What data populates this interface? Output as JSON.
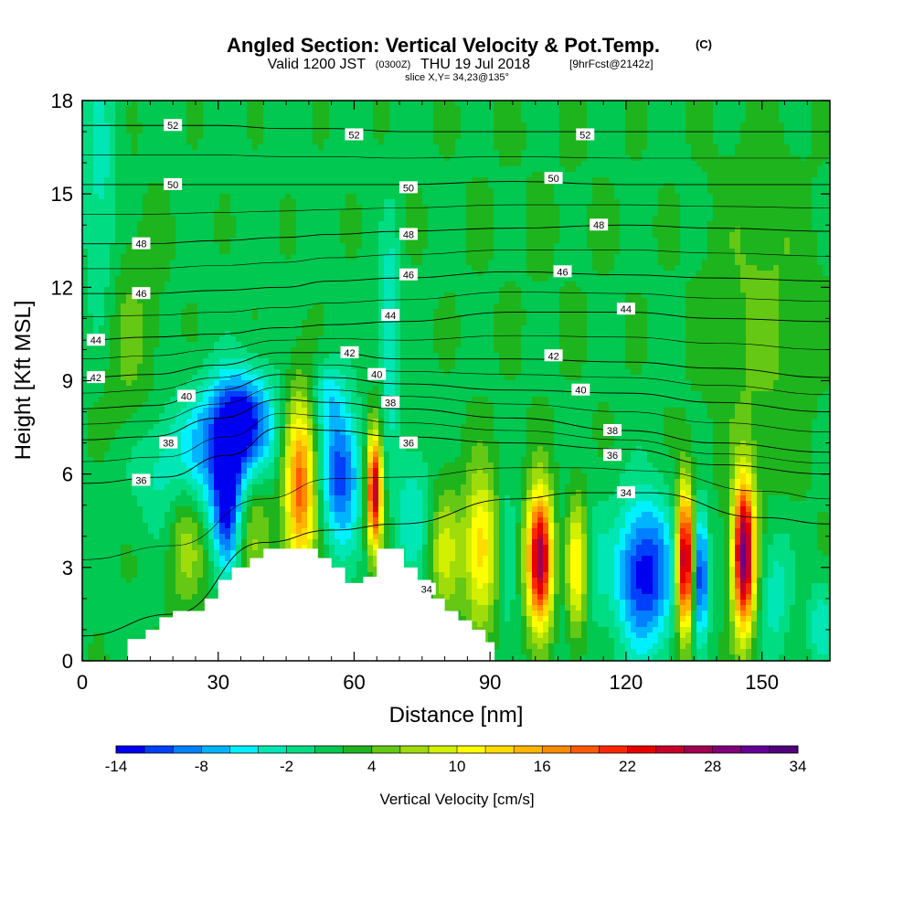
{
  "header": {
    "title": "Angled Section: Vertical Velocity & Pot.Temp.",
    "title_tag": "(C)",
    "valid_prefix": "Valid 1200 JST",
    "valid_utc": "(0300Z)",
    "valid_date": "THU 19 Jul 2018",
    "forecast_tag": "[9hrFcst@2142z]",
    "slice_info": "slice X,Y= 34,23@135°"
  },
  "chart_data": {
    "type": "heatmap",
    "xlabel": "Distance [nm]",
    "ylabel": "Height [Kft MSL]",
    "xlim": [
      0,
      165
    ],
    "ylim": [
      0,
      18
    ],
    "x_ticks": [
      "0",
      "30",
      "60",
      "90",
      "120",
      "150"
    ],
    "y_ticks": [
      "0",
      "3",
      "6",
      "9",
      "12",
      "15",
      "18"
    ],
    "colorbar": {
      "label": "Vertical Velocity [cm/s]",
      "min": -14,
      "max": 34,
      "step": 2,
      "tick_labels": [
        "-14",
        "-8",
        "-2",
        "4",
        "10",
        "16",
        "22",
        "28",
        "34"
      ],
      "colors": [
        "#0000f0",
        "#0040f8",
        "#0080ff",
        "#00b4ff",
        "#00f0ff",
        "#00e6b4",
        "#00dc82",
        "#00c850",
        "#1eb41e",
        "#64c814",
        "#a0dc0a",
        "#d2f000",
        "#ffff00",
        "#ffdc00",
        "#ffb400",
        "#ff8c00",
        "#ff5a00",
        "#ff2800",
        "#e60000",
        "#c80028",
        "#a00050",
        "#820078",
        "#640096",
        "#50007a"
      ]
    },
    "background_value": 1.5,
    "velocity_features": [
      {
        "x": 4,
        "z": 14,
        "sx": 3,
        "sz": 4,
        "value": -5
      },
      {
        "x": 35,
        "z": 7.6,
        "sx": 5,
        "sz": 1.2,
        "value": -16
      },
      {
        "x": 26,
        "z": 6.2,
        "sx": 10,
        "sz": 1.5,
        "value": -8
      },
      {
        "x": 32,
        "z": 4.8,
        "sx": 2,
        "sz": 1.4,
        "value": -12
      },
      {
        "x": 23,
        "z": 4.2,
        "sx": 3,
        "sz": 1.6,
        "value": 7
      },
      {
        "x": 38,
        "z": 5.0,
        "sx": 3,
        "sz": 2,
        "value": 6
      },
      {
        "x": 48,
        "z": 5.6,
        "sx": 2.5,
        "sz": 2.0,
        "value": 18
      },
      {
        "x": 57,
        "z": 6.0,
        "sx": 3,
        "sz": 1.6,
        "value": -13
      },
      {
        "x": 54,
        "z": 8.6,
        "sx": 2.5,
        "sz": 0.8,
        "value": -5
      },
      {
        "x": 64.5,
        "z": 5.5,
        "sx": 1.2,
        "sz": 1.3,
        "value": 25
      },
      {
        "x": 68,
        "z": 10.5,
        "sx": 1.5,
        "sz": 2.5,
        "value": -6
      },
      {
        "x": 73,
        "z": 4.8,
        "sx": 3,
        "sz": 1.6,
        "value": -5
      },
      {
        "x": 80,
        "z": 3.5,
        "sx": 2.5,
        "sz": 1.5,
        "value": 7
      },
      {
        "x": 88,
        "z": 3.6,
        "sx": 2.5,
        "sz": 1.7,
        "value": 12
      },
      {
        "x": 94,
        "z": 3.5,
        "sx": 1.5,
        "sz": 1.6,
        "value": -4
      },
      {
        "x": 101,
        "z": 3.3,
        "sx": 2.0,
        "sz": 1.5,
        "value": 27
      },
      {
        "x": 106,
        "z": 3.2,
        "sx": 1.5,
        "sz": 1.7,
        "value": -3
      },
      {
        "x": 109,
        "z": 3.0,
        "sx": 1.8,
        "sz": 1.5,
        "value": 11
      },
      {
        "x": 113,
        "z": 3.0,
        "sx": 1.8,
        "sz": 1.6,
        "value": -3
      },
      {
        "x": 124,
        "z": 2.8,
        "sx": 4.5,
        "sz": 1.7,
        "value": -15
      },
      {
        "x": 133,
        "z": 3.2,
        "sx": 1.3,
        "sz": 1.6,
        "value": 27
      },
      {
        "x": 136.5,
        "z": 2.8,
        "sx": 1.2,
        "sz": 1.4,
        "value": -14
      },
      {
        "x": 146,
        "z": 3.4,
        "sx": 1.7,
        "sz": 1.7,
        "value": 29
      },
      {
        "x": 153,
        "z": 2.2,
        "sx": 2.5,
        "sz": 1.5,
        "value": -5
      },
      {
        "x": 163,
        "z": 1.2,
        "sx": 2.0,
        "sz": 1.0,
        "value": -5
      },
      {
        "x": 102,
        "z": 14,
        "sx": 18,
        "sz": 5,
        "value": 0.5
      },
      {
        "x": 150,
        "z": 11,
        "sx": 8,
        "sz": 4,
        "value": 3
      },
      {
        "x": 40,
        "z": 15,
        "sx": 10,
        "sz": 4,
        "value": 0
      },
      {
        "x": 8,
        "z": 10,
        "sx": 6,
        "sz": 3,
        "value": 3.5
      }
    ],
    "terrain_profile": [
      [
        0,
        0
      ],
      [
        10,
        0
      ],
      [
        10,
        0.7
      ],
      [
        14,
        0.7
      ],
      [
        14,
        1.0
      ],
      [
        17,
        1.0
      ],
      [
        17,
        1.4
      ],
      [
        20,
        1.4
      ],
      [
        20,
        1.6
      ],
      [
        27,
        1.6
      ],
      [
        27,
        2.0
      ],
      [
        30,
        2.0
      ],
      [
        30,
        2.6
      ],
      [
        33,
        2.6
      ],
      [
        33,
        3.0
      ],
      [
        37,
        3.0
      ],
      [
        37,
        3.3
      ],
      [
        40,
        3.3
      ],
      [
        40,
        3.6
      ],
      [
        52,
        3.6
      ],
      [
        52,
        3.3
      ],
      [
        55,
        3.3
      ],
      [
        55,
        3.0
      ],
      [
        58,
        3.0
      ],
      [
        58,
        2.5
      ],
      [
        62,
        2.5
      ],
      [
        62,
        2.7
      ],
      [
        65,
        2.7
      ],
      [
        65,
        3.6
      ],
      [
        71,
        3.6
      ],
      [
        71,
        3.0
      ],
      [
        74,
        3.0
      ],
      [
        74,
        2.6
      ],
      [
        77,
        2.6
      ],
      [
        77,
        2.0
      ],
      [
        80,
        2.0
      ],
      [
        80,
        1.6
      ],
      [
        83,
        1.6
      ],
      [
        83,
        1.3
      ],
      [
        86,
        1.3
      ],
      [
        86,
        1.0
      ],
      [
        89,
        1.0
      ],
      [
        89,
        0.6
      ],
      [
        91,
        0.6
      ],
      [
        91,
        0
      ],
      [
        165,
        0
      ]
    ],
    "theta_contours": [
      {
        "level": "34",
        "points": [
          [
            0,
            0.8
          ],
          [
            20,
            1.5
          ],
          [
            40,
            3.8
          ],
          [
            55,
            4.2
          ],
          [
            70,
            4.4
          ],
          [
            95,
            5.2
          ],
          [
            110,
            5.4
          ],
          [
            125,
            5.4
          ],
          [
            150,
            4.6
          ],
          [
            165,
            4.4
          ]
        ]
      },
      {
        "level": "36",
        "points": [
          [
            0,
            5.7
          ],
          [
            18,
            5.9
          ],
          [
            32,
            6.6
          ],
          [
            44,
            7.5
          ],
          [
            55,
            7.4
          ],
          [
            70,
            7.2
          ],
          [
            95,
            7.0
          ],
          [
            120,
            6.8
          ],
          [
            140,
            6.3
          ],
          [
            165,
            6.0
          ]
        ]
      },
      {
        "level": "38",
        "points": [
          [
            0,
            7.1
          ],
          [
            15,
            7.2
          ],
          [
            30,
            7.8
          ],
          [
            44,
            8.4
          ],
          [
            55,
            8.3
          ],
          [
            70,
            8.1
          ],
          [
            95,
            7.8
          ],
          [
            120,
            7.4
          ],
          [
            140,
            7.0
          ],
          [
            165,
            6.7
          ]
        ]
      },
      {
        "level": "40",
        "points": [
          [
            0,
            8.1
          ],
          [
            15,
            8.2
          ],
          [
            30,
            8.7
          ],
          [
            44,
            9.2
          ],
          [
            55,
            9.1
          ],
          [
            70,
            8.9
          ],
          [
            95,
            8.7
          ],
          [
            120,
            8.6
          ],
          [
            140,
            8.3
          ],
          [
            165,
            8.0
          ]
        ]
      },
      {
        "level": "42",
        "points": [
          [
            0,
            9.1
          ],
          [
            15,
            9.2
          ],
          [
            30,
            9.5
          ],
          [
            44,
            9.9
          ],
          [
            55,
            9.9
          ],
          [
            70,
            9.7
          ],
          [
            95,
            9.7
          ],
          [
            120,
            9.6
          ],
          [
            140,
            9.4
          ],
          [
            165,
            9.1
          ]
        ]
      },
      {
        "level": "44",
        "points": [
          [
            0,
            10.3
          ],
          [
            15,
            10.4
          ],
          [
            30,
            10.5
          ],
          [
            44,
            10.7
          ],
          [
            55,
            10.8
          ],
          [
            70,
            10.9
          ],
          [
            95,
            11.2
          ],
          [
            120,
            11.2
          ],
          [
            140,
            11.0
          ],
          [
            165,
            10.9
          ]
        ]
      },
      {
        "level": "46",
        "points": [
          [
            0,
            11.8
          ],
          [
            15,
            11.8
          ],
          [
            30,
            11.9
          ],
          [
            44,
            12.0
          ],
          [
            55,
            12.2
          ],
          [
            70,
            12.3
          ],
          [
            95,
            12.5
          ],
          [
            120,
            12.4
          ],
          [
            140,
            12.3
          ],
          [
            165,
            12.2
          ]
        ]
      },
      {
        "level": "48",
        "points": [
          [
            0,
            13.4
          ],
          [
            15,
            13.4
          ],
          [
            30,
            13.5
          ],
          [
            44,
            13.6
          ],
          [
            55,
            13.7
          ],
          [
            70,
            13.8
          ],
          [
            95,
            13.9
          ],
          [
            120,
            14.0
          ],
          [
            140,
            13.9
          ],
          [
            165,
            13.8
          ]
        ]
      },
      {
        "level": "50",
        "points": [
          [
            0,
            15.3
          ],
          [
            15,
            15.3
          ],
          [
            30,
            15.3
          ],
          [
            44,
            15.3
          ],
          [
            55,
            15.3
          ],
          [
            70,
            15.3
          ],
          [
            95,
            15.4
          ],
          [
            120,
            15.3
          ],
          [
            140,
            15.3
          ],
          [
            165,
            15.3
          ]
        ]
      },
      {
        "level": "52",
        "points": [
          [
            0,
            17.2
          ],
          [
            15,
            17.2
          ],
          [
            30,
            17.2
          ],
          [
            44,
            17.1
          ],
          [
            55,
            17.1
          ],
          [
            70,
            17.0
          ],
          [
            95,
            17.0
          ],
          [
            120,
            17.0
          ],
          [
            140,
            17.0
          ],
          [
            165,
            17.0
          ]
        ]
      }
    ],
    "contour_labels": [
      {
        "text": "52",
        "x": 20,
        "z": 17.2
      },
      {
        "text": "52",
        "x": 60,
        "z": 16.9
      },
      {
        "text": "52",
        "x": 111,
        "z": 16.9
      },
      {
        "text": "50",
        "x": 20,
        "z": 15.3
      },
      {
        "text": "50",
        "x": 72,
        "z": 15.2
      },
      {
        "text": "50",
        "x": 104,
        "z": 15.5
      },
      {
        "text": "48",
        "x": 13,
        "z": 13.4
      },
      {
        "text": "48",
        "x": 72,
        "z": 13.7
      },
      {
        "text": "48",
        "x": 114,
        "z": 14.0
      },
      {
        "text": "46",
        "x": 13,
        "z": 11.8
      },
      {
        "text": "46",
        "x": 72,
        "z": 12.4
      },
      {
        "text": "46",
        "x": 106,
        "z": 12.5
      },
      {
        "text": "44",
        "x": 3,
        "z": 10.3
      },
      {
        "text": "44",
        "x": 68,
        "z": 11.1
      },
      {
        "text": "44",
        "x": 120,
        "z": 11.3
      },
      {
        "text": "42",
        "x": 3,
        "z": 9.1
      },
      {
        "text": "42",
        "x": 59,
        "z": 9.9
      },
      {
        "text": "42",
        "x": 104,
        "z": 9.8
      },
      {
        "text": "40",
        "x": 23,
        "z": 8.5
      },
      {
        "text": "40",
        "x": 65,
        "z": 9.2
      },
      {
        "text": "40",
        "x": 110,
        "z": 8.7
      },
      {
        "text": "38",
        "x": 19,
        "z": 7.0
      },
      {
        "text": "38",
        "x": 68,
        "z": 8.3
      },
      {
        "text": "38",
        "x": 117,
        "z": 7.4
      },
      {
        "text": "36",
        "x": 13,
        "z": 5.8
      },
      {
        "text": "36",
        "x": 72,
        "z": 7.0
      },
      {
        "text": "36",
        "x": 117,
        "z": 6.6
      },
      {
        "text": "34",
        "x": 120,
        "z": 5.4
      },
      {
        "text": "34",
        "x": 76,
        "z": 2.3
      }
    ]
  }
}
